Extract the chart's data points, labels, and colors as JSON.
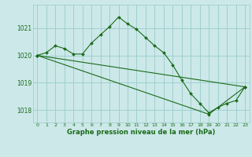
{
  "title": "Graphe pression niveau de la mer (hPa)",
  "background_color": "#cce8e8",
  "grid_color": "#99cccc",
  "line_color": "#1a6b1a",
  "xlim": [
    -0.5,
    23.5
  ],
  "ylim": [
    1017.55,
    1021.85
  ],
  "xticks": [
    0,
    1,
    2,
    3,
    4,
    5,
    6,
    7,
    8,
    9,
    10,
    11,
    12,
    13,
    14,
    15,
    16,
    17,
    18,
    19,
    20,
    21,
    22,
    23
  ],
  "yticks": [
    1018,
    1019,
    1020,
    1021
  ],
  "series": [
    {
      "x": [
        0,
        1,
        2,
        3,
        4,
        5,
        6,
        7,
        8,
        9,
        10,
        11,
        12,
        13,
        14,
        15,
        16,
        17,
        18,
        19,
        20,
        21,
        22,
        23
      ],
      "y": [
        1020.0,
        1020.1,
        1020.35,
        1020.25,
        1020.05,
        1020.05,
        1020.45,
        1020.75,
        1021.05,
        1021.4,
        1021.15,
        1020.95,
        1020.65,
        1020.35,
        1020.1,
        1019.65,
        1019.1,
        1018.6,
        1018.25,
        1017.9,
        1018.1,
        1018.25,
        1018.35,
        1018.85
      ]
    },
    {
      "x": [
        0,
        23
      ],
      "y": [
        1020.0,
        1018.85
      ]
    },
    {
      "x": [
        0,
        19,
        23
      ],
      "y": [
        1020.0,
        1017.85,
        1018.85
      ]
    }
  ]
}
